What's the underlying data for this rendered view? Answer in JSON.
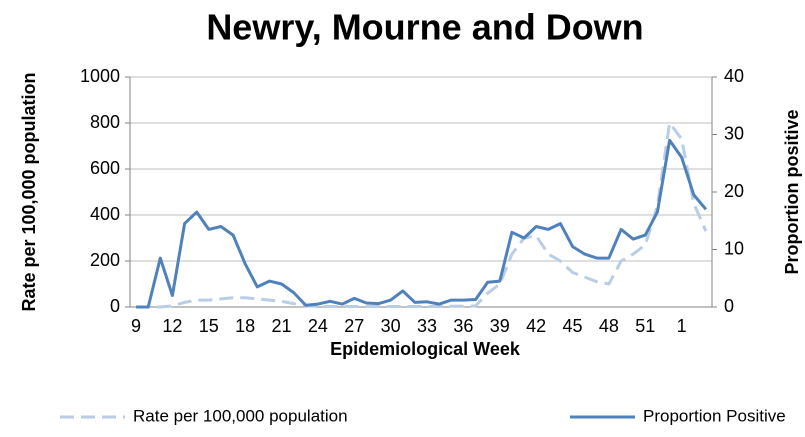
{
  "chart_data": {
    "type": "line",
    "title": "Newry, Mourne and Down",
    "x_label": "Epidemiological Week",
    "y_label": "Rate per 100,000 population",
    "y2_label": "Proportion positive",
    "categories": [
      "9",
      null,
      null,
      "12",
      null,
      null,
      "15",
      null,
      null,
      "18",
      null,
      null,
      "21",
      null,
      null,
      "24",
      null,
      null,
      "27",
      null,
      null,
      "30",
      null,
      null,
      "33",
      null,
      null,
      "36",
      null,
      null,
      "39",
      null,
      null,
      "42",
      null,
      null,
      "45",
      null,
      null,
      "48",
      null,
      null,
      "51",
      null,
      null,
      "1",
      null,
      null
    ],
    "ylim": [
      0,
      1000
    ],
    "yticks": [
      0,
      200,
      400,
      600,
      800,
      1000
    ],
    "y2lim": [
      0,
      40
    ],
    "y2ticks": [
      0,
      10,
      20,
      30,
      40
    ],
    "grid": true,
    "legend": "bottom",
    "series": [
      {
        "name": "Rate per 100,000 population",
        "color": "#b9cde5",
        "linestyle": "dashed",
        "values": [
          0,
          0,
          0,
          5,
          20,
          30,
          30,
          35,
          40,
          40,
          35,
          30,
          25,
          15,
          5,
          2,
          2,
          2,
          2,
          2,
          2,
          2,
          2,
          2,
          2,
          2,
          3,
          3,
          5,
          60,
          100,
          230,
          300,
          310,
          230,
          200,
          150,
          130,
          110,
          100,
          200,
          230,
          270,
          440,
          800,
          730,
          450,
          330
        ]
      },
      {
        "name": "Proportion Positive",
        "color": "#4f81bd",
        "linestyle": "solid",
        "axis": "y2",
        "values": [
          0,
          0,
          8.5,
          2,
          14.5,
          16.5,
          13.5,
          14,
          12.5,
          7.5,
          3.5,
          4.5,
          4,
          2.5,
          0.3,
          0.5,
          1,
          0.5,
          1.5,
          0.7,
          0.6,
          1.2,
          2.8,
          0.8,
          0.9,
          0.5,
          1.2,
          1.2,
          1.3,
          4.3,
          4.5,
          13,
          12,
          14,
          13.5,
          14.5,
          10.5,
          9.2,
          8.5,
          8.5,
          13.5,
          11.8,
          12.5,
          16.5,
          29,
          26,
          19.5,
          17
        ]
      }
    ]
  }
}
